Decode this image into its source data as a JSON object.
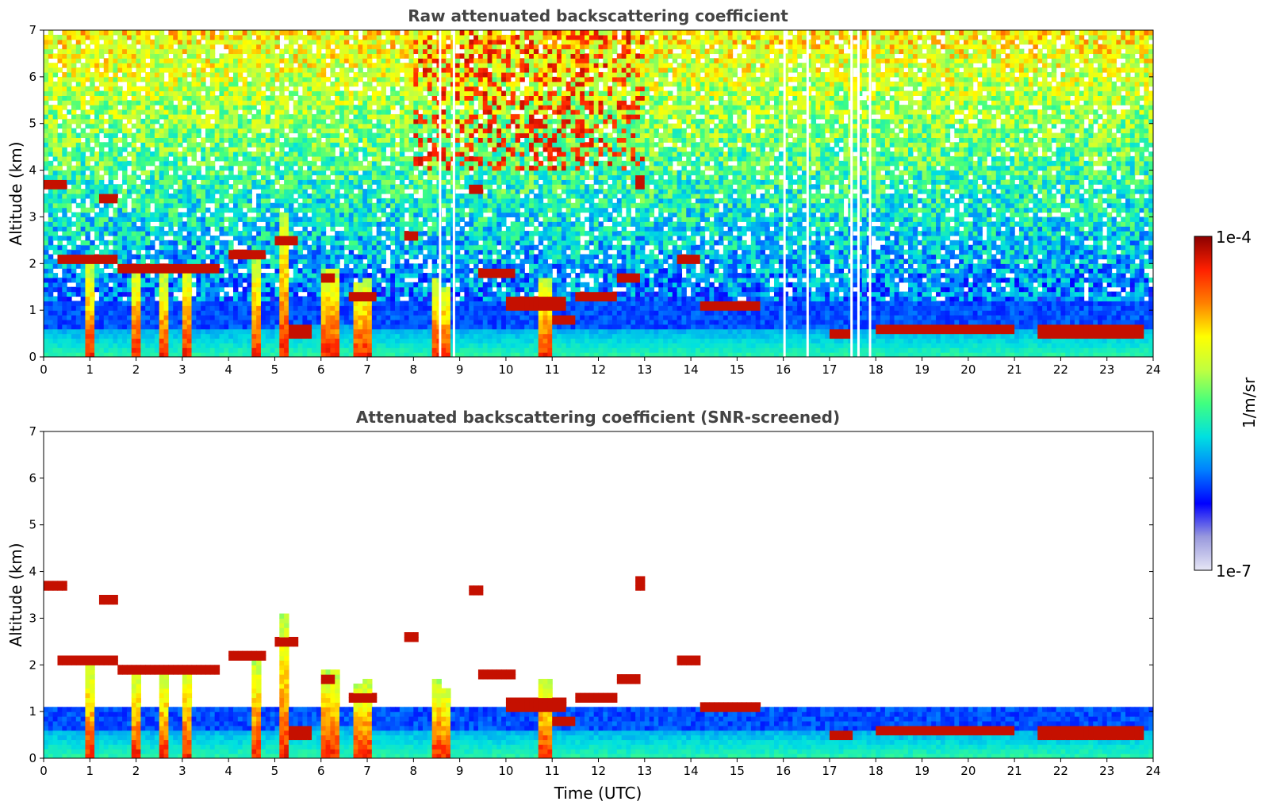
{
  "colors": {
    "background": "#ffffff",
    "colormap": [
      "#e6e6f5",
      "#9999dd",
      "#0000ff",
      "#0080ff",
      "#00e0e0",
      "#40ff80",
      "#c0ff40",
      "#ffff00",
      "#ff8000",
      "#ff2000",
      "#8b0000"
    ],
    "title_color": "#444444"
  },
  "colorbar": {
    "label": "1/m/sr",
    "max_label": "1e-4",
    "min_label": "1e-7",
    "scale": "log",
    "range": [
      1e-07,
      0.0001
    ]
  },
  "chart_data": [
    {
      "type": "heatmap",
      "title": "Raw attenuated backscattering coefficient",
      "xlabel": "",
      "ylabel": "Altitude (km)",
      "xlim": [
        0,
        24
      ],
      "ylim": [
        0,
        7
      ],
      "x_ticks": [
        "0",
        "1",
        "2",
        "3",
        "4",
        "5",
        "6",
        "7",
        "8",
        "9",
        "10",
        "11",
        "12",
        "13",
        "14",
        "15",
        "16",
        "17",
        "18",
        "19",
        "20",
        "21",
        "22",
        "23",
        "24"
      ],
      "y_ticks": [
        "0",
        "1",
        "2",
        "3",
        "4",
        "5",
        "6",
        "7"
      ],
      "grid": false,
      "screened": false
    },
    {
      "type": "heatmap",
      "title": "Attenuated backscattering coefficient (SNR-screened)",
      "xlabel": "Time (UTC)",
      "ylabel": "Altitude (km)",
      "xlim": [
        0,
        24
      ],
      "ylim": [
        0,
        7
      ],
      "x_ticks": [
        "0",
        "1",
        "2",
        "3",
        "4",
        "5",
        "6",
        "7",
        "8",
        "9",
        "10",
        "11",
        "12",
        "13",
        "14",
        "15",
        "16",
        "17",
        "18",
        "19",
        "20",
        "21",
        "22",
        "23",
        "24"
      ],
      "y_ticks": [
        "0",
        "1",
        "2",
        "3",
        "4",
        "5",
        "6",
        "7"
      ],
      "grid": false,
      "screened": true
    }
  ],
  "features": {
    "boundary_layer_top_km": [
      [
        0,
        0.65
      ],
      [
        1,
        0.55
      ],
      [
        2,
        0.6
      ],
      [
        3,
        0.6
      ],
      [
        4,
        0.6
      ],
      [
        5,
        0.65
      ],
      [
        6,
        0.7
      ],
      [
        7,
        0.65
      ],
      [
        8,
        0.65
      ],
      [
        9,
        0.6
      ],
      [
        10,
        0.6
      ],
      [
        11,
        0.65
      ],
      [
        12,
        0.6
      ],
      [
        13,
        0.6
      ],
      [
        14,
        0.6
      ],
      [
        15,
        0.6
      ],
      [
        16,
        0.6
      ],
      [
        17,
        0.55
      ],
      [
        18,
        0.6
      ],
      [
        19,
        0.6
      ],
      [
        20,
        0.6
      ],
      [
        21,
        0.6
      ],
      [
        22,
        0.6
      ],
      [
        23,
        0.6
      ],
      [
        24,
        0.6
      ]
    ],
    "cloud_layers": [
      {
        "t0": 0.0,
        "t1": 0.45,
        "alt": 3.7
      },
      {
        "t0": 0.3,
        "t1": 1.6,
        "alt": 2.1
      },
      {
        "t0": 1.2,
        "t1": 1.6,
        "alt": 3.4
      },
      {
        "t0": 1.6,
        "t1": 3.8,
        "alt": 1.9
      },
      {
        "t0": 4.0,
        "t1": 4.8,
        "alt": 2.2
      },
      {
        "t0": 5.0,
        "t1": 5.5,
        "alt": 2.5
      },
      {
        "t0": 5.3,
        "t1": 5.8,
        "alt": 0.55
      },
      {
        "t0": 6.0,
        "t1": 6.3,
        "alt": 1.7
      },
      {
        "t0": 6.6,
        "t1": 7.2,
        "alt": 1.3
      },
      {
        "t0": 7.8,
        "t1": 8.1,
        "alt": 2.6
      },
      {
        "t0": 9.2,
        "t1": 9.5,
        "alt": 3.6
      },
      {
        "t0": 9.4,
        "t1": 10.2,
        "alt": 1.8
      },
      {
        "t0": 10.0,
        "t1": 11.3,
        "alt": 1.15
      },
      {
        "t0": 11.0,
        "t1": 11.5,
        "alt": 0.8
      },
      {
        "t0": 11.5,
        "t1": 12.4,
        "alt": 1.3
      },
      {
        "t0": 12.4,
        "t1": 12.9,
        "alt": 1.7
      },
      {
        "t0": 12.8,
        "t1": 13.0,
        "alt": 3.75
      },
      {
        "t0": 13.7,
        "t1": 14.2,
        "alt": 2.1
      },
      {
        "t0": 14.2,
        "t1": 15.5,
        "alt": 1.1
      },
      {
        "t0": 17.0,
        "t1": 17.5,
        "alt": 0.5
      },
      {
        "t0": 18.0,
        "t1": 21.0,
        "alt": 0.6
      },
      {
        "t0": 21.5,
        "t1": 23.8,
        "alt": 0.55
      }
    ],
    "precip_columns": [
      {
        "t": 1.0,
        "top": 2.0
      },
      {
        "t": 2.0,
        "top": 1.9
      },
      {
        "t": 2.6,
        "top": 1.8
      },
      {
        "t": 3.1,
        "top": 2.0
      },
      {
        "t": 4.6,
        "top": 2.1
      },
      {
        "t": 5.2,
        "top": 3.1
      },
      {
        "t": 6.1,
        "top": 1.9
      },
      {
        "t": 6.3,
        "top": 1.9
      },
      {
        "t": 6.8,
        "top": 1.6
      },
      {
        "t": 7.0,
        "top": 1.7
      },
      {
        "t": 8.5,
        "top": 1.7
      },
      {
        "t": 8.7,
        "top": 1.5
      },
      {
        "t": 10.85,
        "top": 1.7
      }
    ]
  }
}
